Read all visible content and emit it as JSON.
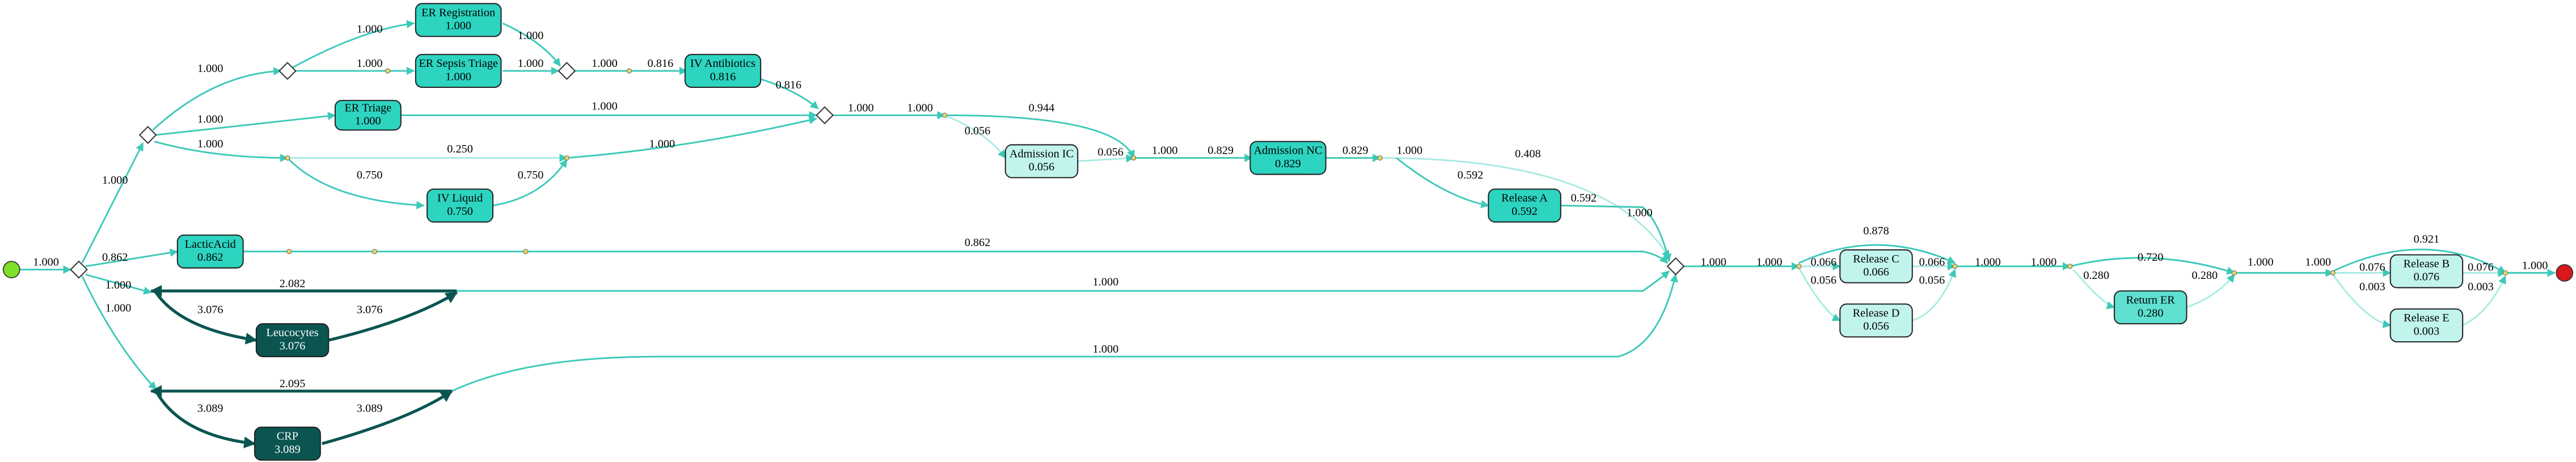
{
  "nodes": [
    {
      "label": "ER Registration",
      "value": "1.000"
    },
    {
      "label": "ER Sepsis Triage",
      "value": "1.000"
    },
    {
      "label": "IV Antibiotics",
      "value": "0.816"
    },
    {
      "label": "ER Triage",
      "value": "1.000"
    },
    {
      "label": "IV Liquid",
      "value": "0.750"
    },
    {
      "label": "LacticAcid",
      "value": "0.862"
    },
    {
      "label": "Leucocytes",
      "value": "3.076"
    },
    {
      "label": "CRP",
      "value": "3.089"
    },
    {
      "label": "Admission IC",
      "value": "0.056"
    },
    {
      "label": "Admission NC",
      "value": "0.829"
    },
    {
      "label": "Release A",
      "value": "0.592"
    },
    {
      "label": "Release C",
      "value": "0.066"
    },
    {
      "label": "Release D",
      "value": "0.056"
    },
    {
      "label": "Return ER",
      "value": "0.280"
    },
    {
      "label": "Release B",
      "value": "0.076"
    },
    {
      "label": "Release E",
      "value": "0.003"
    }
  ],
  "edge_labels": [
    "1.000",
    "0.862",
    "1.000",
    "1.000",
    "1.000",
    "1.000",
    "1.000",
    "1.000",
    "1.000",
    "1.000",
    "1.000",
    "1.000",
    "1.000",
    "0.816",
    "0.816",
    "1.000",
    "0.250",
    "0.750",
    "0.750",
    "1.000",
    "1.000",
    "1.000",
    "0.944",
    "0.056",
    "0.056",
    "1.000",
    "0.829",
    "0.829",
    "1.000",
    "0.408",
    "0.592",
    "0.592",
    "1.000",
    "0.862",
    "2.082",
    "3.076",
    "3.076",
    "1.000",
    "1.000",
    "2.095",
    "3.089",
    "3.089",
    "1.000",
    "1.000",
    "0.066",
    "0.056",
    "0.878",
    "0.066",
    "0.056",
    "1.000",
    "1.000",
    "0.720",
    "0.280",
    "0.280",
    "1.000",
    "1.000",
    "0.076",
    "0.003",
    "0.921",
    "0.076",
    "0.003",
    "1.000"
  ]
}
